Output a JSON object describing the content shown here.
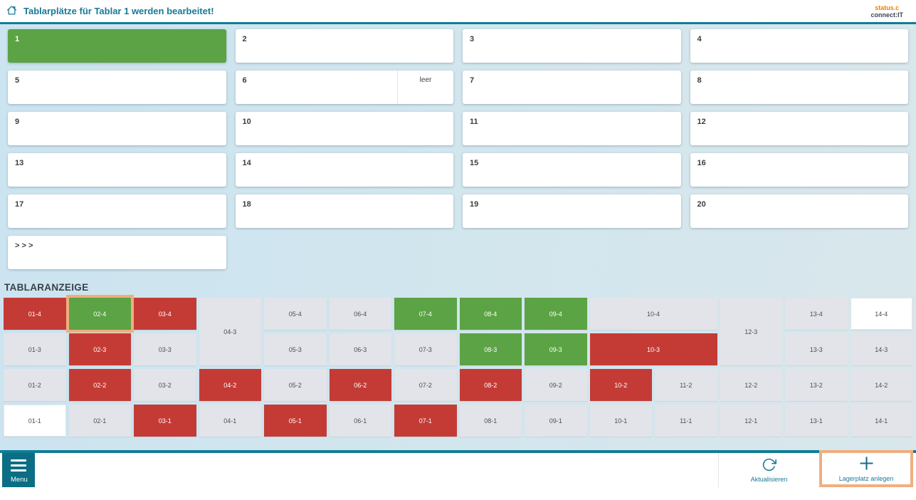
{
  "header": {
    "title": "Tablarplätze für Tablar 1 werden bearbeitet!",
    "logo": {
      "line1": "status.c",
      "line2": "connect:IT"
    }
  },
  "tray_list": {
    "cards": [
      {
        "label": "1",
        "state": "active"
      },
      {
        "label": "2"
      },
      {
        "label": "3"
      },
      {
        "label": "4"
      },
      {
        "label": "5"
      },
      {
        "label": "6",
        "slot_label": "leer"
      },
      {
        "label": "7"
      },
      {
        "label": "8"
      },
      {
        "label": "9"
      },
      {
        "label": "10"
      },
      {
        "label": "11"
      },
      {
        "label": "12"
      },
      {
        "label": "13"
      },
      {
        "label": "14"
      },
      {
        "label": "15"
      },
      {
        "label": "16"
      },
      {
        "label": "17"
      },
      {
        "label": "18"
      },
      {
        "label": "19"
      },
      {
        "label": "20"
      }
    ],
    "more_card_label": "> > >"
  },
  "tablar_view": {
    "heading": "TABLARANZEIGE",
    "cells": [
      {
        "label": "01-4",
        "col": 1,
        "row": 1,
        "state": "red"
      },
      {
        "label": "02-4",
        "col": 2,
        "row": 1,
        "state": "green",
        "selected": true
      },
      {
        "label": "03-4",
        "col": 3,
        "row": 1,
        "state": "red"
      },
      {
        "label": "04-3",
        "col": 4,
        "row": 1,
        "rowspan": 2,
        "state": "gray"
      },
      {
        "label": "05-4",
        "col": 5,
        "row": 1,
        "state": "gray"
      },
      {
        "label": "06-4",
        "col": 6,
        "row": 1,
        "state": "gray"
      },
      {
        "label": "07-4",
        "col": 7,
        "row": 1,
        "state": "green"
      },
      {
        "label": "08-4",
        "col": 8,
        "row": 1,
        "state": "green"
      },
      {
        "label": "09-4",
        "col": 9,
        "row": 1,
        "state": "green"
      },
      {
        "label": "10-4",
        "col": 10,
        "row": 1,
        "colspan": 2,
        "state": "gray"
      },
      {
        "label": "12-3",
        "col": 12,
        "row": 1,
        "rowspan": 2,
        "state": "gray"
      },
      {
        "label": "13-4",
        "col": 13,
        "row": 1,
        "state": "gray"
      },
      {
        "label": "14-4",
        "col": 14,
        "row": 1,
        "state": "white"
      },
      {
        "label": "01-3",
        "col": 1,
        "row": 2,
        "state": "gray"
      },
      {
        "label": "02-3",
        "col": 2,
        "row": 2,
        "state": "red"
      },
      {
        "label": "03-3",
        "col": 3,
        "row": 2,
        "state": "gray"
      },
      {
        "label": "05-3",
        "col": 5,
        "row": 2,
        "state": "gray"
      },
      {
        "label": "06-3",
        "col": 6,
        "row": 2,
        "state": "gray"
      },
      {
        "label": "07-3",
        "col": 7,
        "row": 2,
        "state": "gray"
      },
      {
        "label": "08-3",
        "col": 8,
        "row": 2,
        "state": "green"
      },
      {
        "label": "09-3",
        "col": 9,
        "row": 2,
        "state": "green"
      },
      {
        "label": "10-3",
        "col": 10,
        "row": 2,
        "colspan": 2,
        "state": "red"
      },
      {
        "label": "13-3",
        "col": 13,
        "row": 2,
        "state": "gray"
      },
      {
        "label": "14-3",
        "col": 14,
        "row": 2,
        "state": "gray"
      },
      {
        "label": "01-2",
        "col": 1,
        "row": 3,
        "state": "gray"
      },
      {
        "label": "02-2",
        "col": 2,
        "row": 3,
        "state": "red"
      },
      {
        "label": "03-2",
        "col": 3,
        "row": 3,
        "state": "gray"
      },
      {
        "label": "04-2",
        "col": 4,
        "row": 3,
        "state": "red"
      },
      {
        "label": "05-2",
        "col": 5,
        "row": 3,
        "state": "gray"
      },
      {
        "label": "06-2",
        "col": 6,
        "row": 3,
        "state": "red"
      },
      {
        "label": "07-2",
        "col": 7,
        "row": 3,
        "state": "gray"
      },
      {
        "label": "08-2",
        "col": 8,
        "row": 3,
        "state": "red"
      },
      {
        "label": "09-2",
        "col": 9,
        "row": 3,
        "state": "gray"
      },
      {
        "label": "10-2",
        "col": 10,
        "row": 3,
        "state": "red"
      },
      {
        "label": "11-2",
        "col": 11,
        "row": 3,
        "state": "gray"
      },
      {
        "label": "12-2",
        "col": 12,
        "row": 3,
        "state": "gray"
      },
      {
        "label": "13-2",
        "col": 13,
        "row": 3,
        "state": "gray"
      },
      {
        "label": "14-2",
        "col": 14,
        "row": 3,
        "state": "gray"
      },
      {
        "label": "01-1",
        "col": 1,
        "row": 4,
        "state": "white"
      },
      {
        "label": "02-1",
        "col": 2,
        "row": 4,
        "state": "gray"
      },
      {
        "label": "03-1",
        "col": 3,
        "row": 4,
        "state": "red"
      },
      {
        "label": "04-1",
        "col": 4,
        "row": 4,
        "state": "gray"
      },
      {
        "label": "05-1",
        "col": 5,
        "row": 4,
        "state": "red"
      },
      {
        "label": "06-1",
        "col": 6,
        "row": 4,
        "state": "gray"
      },
      {
        "label": "07-1",
        "col": 7,
        "row": 4,
        "state": "red"
      },
      {
        "label": "08-1",
        "col": 8,
        "row": 4,
        "state": "gray"
      },
      {
        "label": "09-1",
        "col": 9,
        "row": 4,
        "state": "gray"
      },
      {
        "label": "10-1",
        "col": 10,
        "row": 4,
        "state": "gray"
      },
      {
        "label": "11-1",
        "col": 11,
        "row": 4,
        "state": "gray"
      },
      {
        "label": "12-1",
        "col": 12,
        "row": 4,
        "state": "gray"
      },
      {
        "label": "13-1",
        "col": 13,
        "row": 4,
        "state": "gray"
      },
      {
        "label": "14-1",
        "col": 14,
        "row": 4,
        "state": "gray"
      }
    ]
  },
  "footer": {
    "menu_label": "Menu",
    "refresh_label": "Aktualisieren",
    "create_label": "Lagerplatz anlegen"
  },
  "colors": {
    "accent_teal": "#0f7d96",
    "title_teal": "#187a96",
    "occupied_red": "#c43b36",
    "free_green": "#5ba344",
    "empty_gray": "#e2e4e9",
    "highlight_orange": "#f0ae7e",
    "background_blue": "#cbe4f0",
    "logo_orange": "#ee8100"
  }
}
